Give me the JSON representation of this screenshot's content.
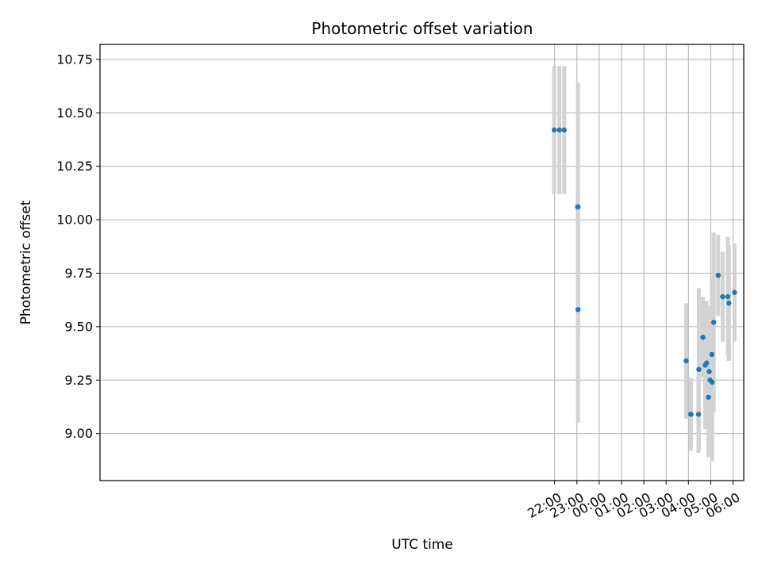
{
  "chart_data": {
    "type": "scatter",
    "title": "Photometric offset variation",
    "xlabel": "UTC time",
    "ylabel": "Photometric offset",
    "grid": true,
    "x_unit": "UTC time (hours past 00:00 on the second day; negative = previous evening)",
    "xlim": [
      -22.38,
      6.48
    ],
    "ylim": [
      8.78,
      10.82
    ],
    "x_ticks": [
      {
        "value": -2,
        "label": "22:00"
      },
      {
        "value": -1,
        "label": "23:00"
      },
      {
        "value": 0,
        "label": "00:00"
      },
      {
        "value": 1,
        "label": "01:00"
      },
      {
        "value": 2,
        "label": "02:00"
      },
      {
        "value": 3,
        "label": "03:00"
      },
      {
        "value": 4,
        "label": "04:00"
      },
      {
        "value": 5,
        "label": "05:00"
      },
      {
        "value": 6,
        "label": "06:00"
      }
    ],
    "y_ticks": [
      {
        "value": 9.0,
        "label": "9.00"
      },
      {
        "value": 9.25,
        "label": "9.25"
      },
      {
        "value": 9.5,
        "label": "9.50"
      },
      {
        "value": 9.75,
        "label": "9.75"
      },
      {
        "value": 10.0,
        "label": "10.00"
      },
      {
        "value": 10.25,
        "label": "10.25"
      },
      {
        "value": 10.5,
        "label": "10.50"
      },
      {
        "value": 10.75,
        "label": "10.75"
      }
    ],
    "colors": {
      "point": "#1f77b4",
      "errorbar": "#d3d3d3",
      "grid": "#b0b0b0"
    },
    "points": [
      {
        "x": "21:59",
        "y": 10.42,
        "err": 0.3
      },
      {
        "x": "22:13",
        "y": 10.42,
        "err": 0.3
      },
      {
        "x": "22:26",
        "y": 10.42,
        "err": 0.3
      },
      {
        "x": "23:02",
        "y": 10.06,
        "err": 0.05
      },
      {
        "x": "23:03",
        "y": 9.58,
        "err": 0.53
      },
      {
        "x": "23:03",
        "y": 10.06,
        "err": 0.58
      },
      {
        "x": "03:54",
        "y": 9.34,
        "err": 0.27
      },
      {
        "x": "04:06",
        "y": 9.09,
        "err": 0.17
      },
      {
        "x": "04:07",
        "y": 9.09,
        "err": 0.17
      },
      {
        "x": "04:27",
        "y": 9.09,
        "err": 0.18
      },
      {
        "x": "04:28",
        "y": 9.3,
        "err": 0.38
      },
      {
        "x": "04:39",
        "y": 9.45,
        "err": 0.19
      },
      {
        "x": "04:45",
        "y": 9.32,
        "err": 0.3
      },
      {
        "x": "04:49",
        "y": 9.33,
        "err": 0.29
      },
      {
        "x": "04:54",
        "y": 9.17,
        "err": 0.28
      },
      {
        "x": "04:56",
        "y": 9.29,
        "err": 0.28
      },
      {
        "x": "04:58",
        "y": 9.25,
        "err": 0.35
      },
      {
        "x": "05:03",
        "y": 9.37,
        "err": 0.36
      },
      {
        "x": "05:04",
        "y": 9.24,
        "err": 0.37
      },
      {
        "x": "05:08",
        "y": 9.52,
        "err": 0.42
      },
      {
        "x": "05:20",
        "y": 9.74,
        "err": 0.19
      },
      {
        "x": "05:32",
        "y": 9.64,
        "err": 0.21
      },
      {
        "x": "05:46",
        "y": 9.64,
        "err": 0.28
      },
      {
        "x": "05:49",
        "y": 9.61,
        "err": 0.27
      },
      {
        "x": "06:04",
        "y": 9.66,
        "err": 0.23
      }
    ]
  }
}
